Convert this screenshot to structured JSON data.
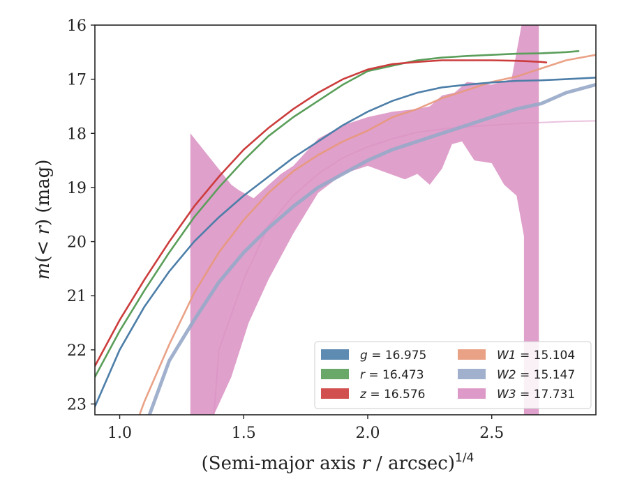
{
  "chart_data": {
    "type": "line",
    "xlabel": "(Semi-major axis r / arcsec)^{1/4}",
    "ylabel": "m(< r) (mag)",
    "xlim": [
      0.9,
      2.92
    ],
    "ylim": [
      23.2,
      16.0
    ],
    "x_ticks": [
      1.0,
      1.5,
      2.0,
      2.5
    ],
    "x_tick_labels": [
      "1.0",
      "1.5",
      "2.0",
      "2.5"
    ],
    "y_ticks": [
      16,
      17,
      18,
      19,
      20,
      21,
      22,
      23
    ],
    "y_tick_labels": [
      "16",
      "17",
      "18",
      "19",
      "20",
      "21",
      "22",
      "23"
    ],
    "legend_position": "lower-right",
    "series": [
      {
        "name": "g = 16.975",
        "band": "g",
        "value": "16.975",
        "color": "#4c7ea8",
        "kind": "line",
        "points": [
          [
            0.9,
            23.05
          ],
          [
            1.0,
            22.0
          ],
          [
            1.1,
            21.2
          ],
          [
            1.2,
            20.55
          ],
          [
            1.3,
            20.0
          ],
          [
            1.4,
            19.55
          ],
          [
            1.5,
            19.15
          ],
          [
            1.6,
            18.8
          ],
          [
            1.7,
            18.45
          ],
          [
            1.8,
            18.15
          ],
          [
            1.9,
            17.85
          ],
          [
            2.0,
            17.6
          ],
          [
            2.1,
            17.4
          ],
          [
            2.2,
            17.25
          ],
          [
            2.3,
            17.15
          ],
          [
            2.4,
            17.1
          ],
          [
            2.5,
            17.06
          ],
          [
            2.6,
            17.03
          ],
          [
            2.7,
            17.02
          ],
          [
            2.8,
            17.0
          ],
          [
            2.92,
            16.97
          ]
        ]
      },
      {
        "name": "r = 16.473",
        "band": "r",
        "value": "16.473",
        "color": "#5a9e5a",
        "kind": "line",
        "points": [
          [
            0.9,
            22.5
          ],
          [
            1.0,
            21.65
          ],
          [
            1.1,
            20.9
          ],
          [
            1.2,
            20.2
          ],
          [
            1.3,
            19.55
          ],
          [
            1.4,
            19.0
          ],
          [
            1.5,
            18.5
          ],
          [
            1.6,
            18.05
          ],
          [
            1.7,
            17.7
          ],
          [
            1.8,
            17.4
          ],
          [
            1.9,
            17.1
          ],
          [
            2.0,
            16.85
          ],
          [
            2.1,
            16.75
          ],
          [
            2.2,
            16.65
          ],
          [
            2.3,
            16.6
          ],
          [
            2.4,
            16.57
          ],
          [
            2.5,
            16.55
          ],
          [
            2.6,
            16.53
          ],
          [
            2.7,
            16.52
          ],
          [
            2.8,
            16.5
          ],
          [
            2.85,
            16.48
          ]
        ]
      },
      {
        "name": "z = 16.576",
        "band": "z",
        "value": "16.576",
        "color": "#cc3c3c",
        "kind": "line",
        "points": [
          [
            0.9,
            22.3
          ],
          [
            1.0,
            21.45
          ],
          [
            1.1,
            20.7
          ],
          [
            1.2,
            20.0
          ],
          [
            1.3,
            19.35
          ],
          [
            1.4,
            18.8
          ],
          [
            1.5,
            18.3
          ],
          [
            1.6,
            17.9
          ],
          [
            1.7,
            17.55
          ],
          [
            1.8,
            17.25
          ],
          [
            1.9,
            17.0
          ],
          [
            2.0,
            16.82
          ],
          [
            2.1,
            16.72
          ],
          [
            2.2,
            16.68
          ],
          [
            2.3,
            16.65
          ],
          [
            2.4,
            16.65
          ],
          [
            2.5,
            16.65
          ],
          [
            2.6,
            16.66
          ],
          [
            2.7,
            16.68
          ],
          [
            2.72,
            16.69
          ]
        ]
      },
      {
        "name": "W1 = 15.104",
        "band": "W1",
        "value": "15.104",
        "color": "#e8987a",
        "kind": "line",
        "points": [
          [
            1.08,
            23.2
          ],
          [
            1.1,
            22.95
          ],
          [
            1.2,
            21.9
          ],
          [
            1.3,
            20.95
          ],
          [
            1.4,
            20.2
          ],
          [
            1.5,
            19.6
          ],
          [
            1.6,
            19.1
          ],
          [
            1.7,
            18.7
          ],
          [
            1.8,
            18.4
          ],
          [
            1.9,
            18.15
          ],
          [
            2.0,
            17.95
          ],
          [
            2.1,
            17.7
          ],
          [
            2.2,
            17.55
          ],
          [
            2.3,
            17.35
          ],
          [
            2.4,
            17.2
          ],
          [
            2.5,
            17.05
          ],
          [
            2.6,
            16.95
          ],
          [
            2.7,
            16.8
          ],
          [
            2.8,
            16.65
          ],
          [
            2.92,
            16.55
          ]
        ]
      },
      {
        "name": "W2 = 15.147",
        "band": "W2",
        "value": "15.147",
        "color": "#97a8c8",
        "kind": "line",
        "points": [
          [
            1.12,
            23.2
          ],
          [
            1.2,
            22.2
          ],
          [
            1.3,
            21.45
          ],
          [
            1.4,
            20.75
          ],
          [
            1.5,
            20.2
          ],
          [
            1.6,
            19.75
          ],
          [
            1.7,
            19.35
          ],
          [
            1.8,
            19.0
          ],
          [
            1.9,
            18.75
          ],
          [
            2.0,
            18.5
          ],
          [
            2.1,
            18.3
          ],
          [
            2.2,
            18.15
          ],
          [
            2.3,
            18.0
          ],
          [
            2.4,
            17.85
          ],
          [
            2.5,
            17.7
          ],
          [
            2.6,
            17.55
          ],
          [
            2.7,
            17.45
          ],
          [
            2.8,
            17.25
          ],
          [
            2.92,
            17.1
          ]
        ]
      },
      {
        "name": "W3 = 17.731",
        "band": "W3",
        "value": "17.731",
        "color": "#d98fc2",
        "kind": "band",
        "mid_points": [
          [
            1.38,
            23.2
          ],
          [
            1.4,
            22.0
          ],
          [
            1.5,
            20.7
          ],
          [
            1.6,
            19.7
          ],
          [
            1.7,
            19.15
          ],
          [
            1.8,
            18.75
          ],
          [
            1.9,
            18.45
          ],
          [
            2.0,
            18.25
          ],
          [
            2.1,
            18.1
          ],
          [
            2.2,
            17.98
          ],
          [
            2.3,
            17.92
          ],
          [
            2.4,
            17.88
          ],
          [
            2.5,
            17.85
          ],
          [
            2.6,
            17.82
          ],
          [
            2.7,
            17.8
          ],
          [
            2.8,
            17.78
          ],
          [
            2.92,
            17.77
          ]
        ],
        "upper": [
          [
            1.285,
            18.0
          ],
          [
            1.45,
            18.95
          ],
          [
            1.48,
            19.05
          ],
          [
            1.54,
            19.2
          ],
          [
            1.65,
            18.75
          ],
          [
            1.7,
            18.6
          ],
          [
            1.8,
            18.1
          ],
          [
            1.9,
            17.85
          ],
          [
            2.0,
            17.7
          ],
          [
            2.1,
            17.6
          ],
          [
            2.2,
            17.55
          ],
          [
            2.25,
            17.5
          ],
          [
            2.3,
            17.3
          ],
          [
            2.35,
            17.25
          ],
          [
            2.4,
            17.05
          ],
          [
            2.5,
            17.1
          ],
          [
            2.58,
            17.0
          ],
          [
            2.6,
            16.5
          ],
          [
            2.62,
            16.0
          ],
          [
            2.69,
            16.0
          ]
        ],
        "lower": [
          [
            2.69,
            23.2
          ],
          [
            2.63,
            23.2
          ],
          [
            2.63,
            19.9
          ],
          [
            2.6,
            19.15
          ],
          [
            2.55,
            18.95
          ],
          [
            2.5,
            18.55
          ],
          [
            2.43,
            18.5
          ],
          [
            2.38,
            18.15
          ],
          [
            2.34,
            18.2
          ],
          [
            2.3,
            18.65
          ],
          [
            2.25,
            18.95
          ],
          [
            2.2,
            18.75
          ],
          [
            2.15,
            18.85
          ],
          [
            2.0,
            18.6
          ],
          [
            1.9,
            18.75
          ],
          [
            1.8,
            19.1
          ],
          [
            1.7,
            19.85
          ],
          [
            1.6,
            20.7
          ],
          [
            1.52,
            21.5
          ],
          [
            1.45,
            22.5
          ],
          [
            1.38,
            23.2
          ],
          [
            1.285,
            23.2
          ]
        ]
      }
    ]
  }
}
